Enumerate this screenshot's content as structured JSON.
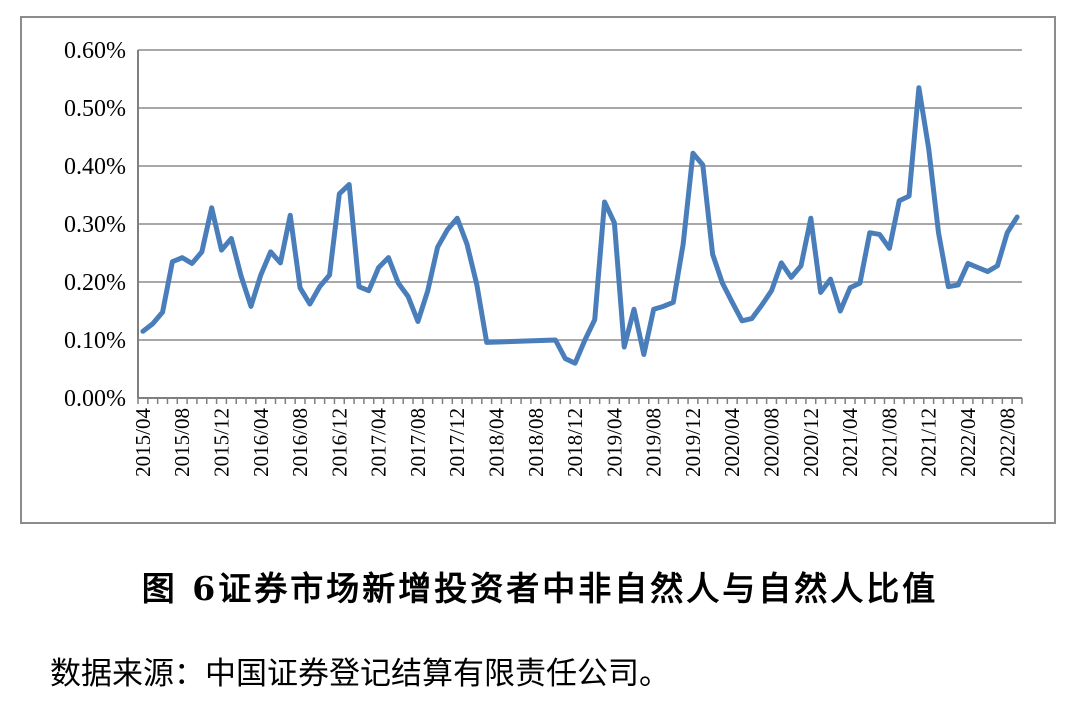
{
  "figure": {
    "number": "图 6",
    "title": "证券市场新增投资者中非自然人与自然人比值",
    "source": "数据来源：中国证券登记结算有限责任公司。"
  },
  "chart_data": {
    "type": "line",
    "series": [
      {
        "color": "#4a7ebb",
        "points": [
          [
            "2015/04",
            0.115
          ],
          [
            "2015/05",
            0.128
          ],
          [
            "2015/06",
            0.148
          ],
          [
            "2015/07",
            0.235
          ],
          [
            "2015/08",
            0.242
          ],
          [
            "2015/09",
            0.232
          ],
          [
            "2015/10",
            0.252
          ],
          [
            "2015/11",
            0.328
          ],
          [
            "2015/12",
            0.255
          ],
          [
            "2016/01",
            0.275
          ],
          [
            "2016/02",
            0.21
          ],
          [
            "2016/03",
            0.158
          ],
          [
            "2016/04",
            0.212
          ],
          [
            "2016/05",
            0.252
          ],
          [
            "2016/06",
            0.233
          ],
          [
            "2016/07",
            0.315
          ],
          [
            "2016/08",
            0.19
          ],
          [
            "2016/09",
            0.162
          ],
          [
            "2016/10",
            0.192
          ],
          [
            "2016/11",
            0.212
          ],
          [
            "2016/12",
            0.352
          ],
          [
            "2017/01",
            0.368
          ],
          [
            "2017/02",
            0.192
          ],
          [
            "2017/03",
            0.185
          ],
          [
            "2017/04",
            0.225
          ],
          [
            "2017/05",
            0.242
          ],
          [
            "2017/06",
            0.198
          ],
          [
            "2017/07",
            0.175
          ],
          [
            "2017/08",
            0.132
          ],
          [
            "2017/09",
            0.185
          ],
          [
            "2017/10",
            0.26
          ],
          [
            "2017/11",
            0.29
          ],
          [
            "2017/12",
            0.31
          ],
          [
            "2018/01",
            0.265
          ],
          [
            "2018/02",
            0.195
          ],
          [
            "2018/03",
            0.096
          ],
          [
            "2018/10",
            0.1
          ],
          [
            "2018/11",
            0.068
          ],
          [
            "2018/12",
            0.06
          ],
          [
            "2019/01",
            0.1
          ],
          [
            "2019/02",
            0.135
          ],
          [
            "2019/03",
            0.338
          ],
          [
            "2019/04",
            0.302
          ],
          [
            "2019/05",
            0.088
          ],
          [
            "2019/06",
            0.153
          ],
          [
            "2019/07",
            0.075
          ],
          [
            "2019/08",
            0.153
          ],
          [
            "2019/09",
            0.158
          ],
          [
            "2019/10",
            0.165
          ],
          [
            "2019/11",
            0.265
          ],
          [
            "2019/12",
            0.422
          ],
          [
            "2020/01",
            0.402
          ],
          [
            "2020/02",
            0.248
          ],
          [
            "2020/03",
            0.198
          ],
          [
            "2020/04",
            0.165
          ],
          [
            "2020/05",
            0.133
          ],
          [
            "2020/06",
            0.137
          ],
          [
            "2020/07",
            0.16
          ],
          [
            "2020/08",
            0.185
          ],
          [
            "2020/09",
            0.233
          ],
          [
            "2020/10",
            0.208
          ],
          [
            "2020/11",
            0.228
          ],
          [
            "2020/12",
            0.31
          ],
          [
            "2021/01",
            0.182
          ],
          [
            "2021/02",
            0.205
          ],
          [
            "2021/03",
            0.15
          ],
          [
            "2021/04",
            0.19
          ],
          [
            "2021/05",
            0.198
          ],
          [
            "2021/06",
            0.285
          ],
          [
            "2021/07",
            0.282
          ],
          [
            "2021/08",
            0.258
          ],
          [
            "2021/09",
            0.34
          ],
          [
            "2021/10",
            0.348
          ],
          [
            "2021/11",
            0.535
          ],
          [
            "2021/12",
            0.43
          ],
          [
            "2022/01",
            0.285
          ],
          [
            "2022/02",
            0.192
          ],
          [
            "2022/03",
            0.195
          ],
          [
            "2022/04",
            0.232
          ],
          [
            "2022/05",
            0.225
          ],
          [
            "2022/06",
            0.218
          ],
          [
            "2022/07",
            0.228
          ],
          [
            "2022/08",
            0.285
          ],
          [
            "2022/09",
            0.312
          ]
        ]
      }
    ],
    "x_start": "2015/04",
    "x_end": "2022/09",
    "x_tick_labels": [
      "2015/04",
      "2015/08",
      "2015/12",
      "2016/04",
      "2016/08",
      "2016/12",
      "2017/04",
      "2017/08",
      "2017/12",
      "2018/04",
      "2018/08",
      "2018/12",
      "2019/04",
      "2019/08",
      "2019/12",
      "2020/04",
      "2020/08",
      "2020/12",
      "2021/04",
      "2021/08",
      "2021/12",
      "2022/04",
      "2022/08"
    ],
    "y_ticks": [
      0,
      0.1,
      0.2,
      0.3,
      0.4,
      0.5,
      0.6
    ],
    "y_tick_labels": [
      "0.00%",
      "0.10%",
      "0.20%",
      "0.30%",
      "0.40%",
      "0.50%",
      "0.60%"
    ],
    "ylim": [
      0,
      0.6
    ],
    "grid": true,
    "legend": "none"
  }
}
